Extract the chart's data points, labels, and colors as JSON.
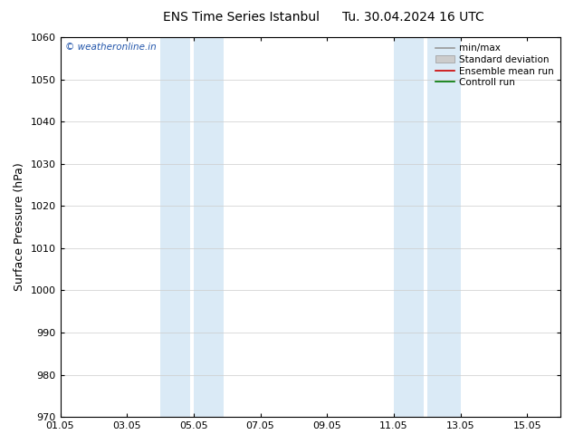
{
  "title_left": "ENS Time Series Istanbul",
  "title_right": "Tu. 30.04.2024 16 UTC",
  "ylabel": "Surface Pressure (hPa)",
  "ylim": [
    970,
    1060
  ],
  "yticks": [
    970,
    980,
    990,
    1000,
    1010,
    1020,
    1030,
    1040,
    1050,
    1060
  ],
  "xtick_labels": [
    "01.05",
    "03.05",
    "05.05",
    "07.05",
    "09.05",
    "11.05",
    "13.05",
    "15.05"
  ],
  "xtick_positions": [
    0,
    2,
    4,
    6,
    8,
    10,
    12,
    14
  ],
  "xlim": [
    0,
    15
  ],
  "shaded_regions": [
    {
      "x_start": 3.0,
      "x_end": 3.9,
      "color": "#daeaf6"
    },
    {
      "x_start": 4.0,
      "x_end": 4.9,
      "color": "#daeaf6"
    },
    {
      "x_start": 10.0,
      "x_end": 10.9,
      "color": "#daeaf6"
    },
    {
      "x_start": 11.0,
      "x_end": 12.0,
      "color": "#daeaf6"
    }
  ],
  "watermark_text": "© weatheronline.in",
  "watermark_color": "#2255aa",
  "legend_items": [
    {
      "label": "min/max",
      "color": "#999999",
      "type": "line",
      "lw": 1.2
    },
    {
      "label": "Standard deviation",
      "color": "#cccccc",
      "type": "patch"
    },
    {
      "label": "Ensemble mean run",
      "color": "#cc0000",
      "type": "line",
      "lw": 1.2
    },
    {
      "label": "Controll run",
      "color": "#007700",
      "type": "line",
      "lw": 1.2
    }
  ],
  "background_color": "#ffffff",
  "plot_bg_color": "#ffffff",
  "grid_color": "#cccccc",
  "title_fontsize": 10,
  "tick_fontsize": 8,
  "ylabel_fontsize": 9,
  "legend_fontsize": 7.5
}
